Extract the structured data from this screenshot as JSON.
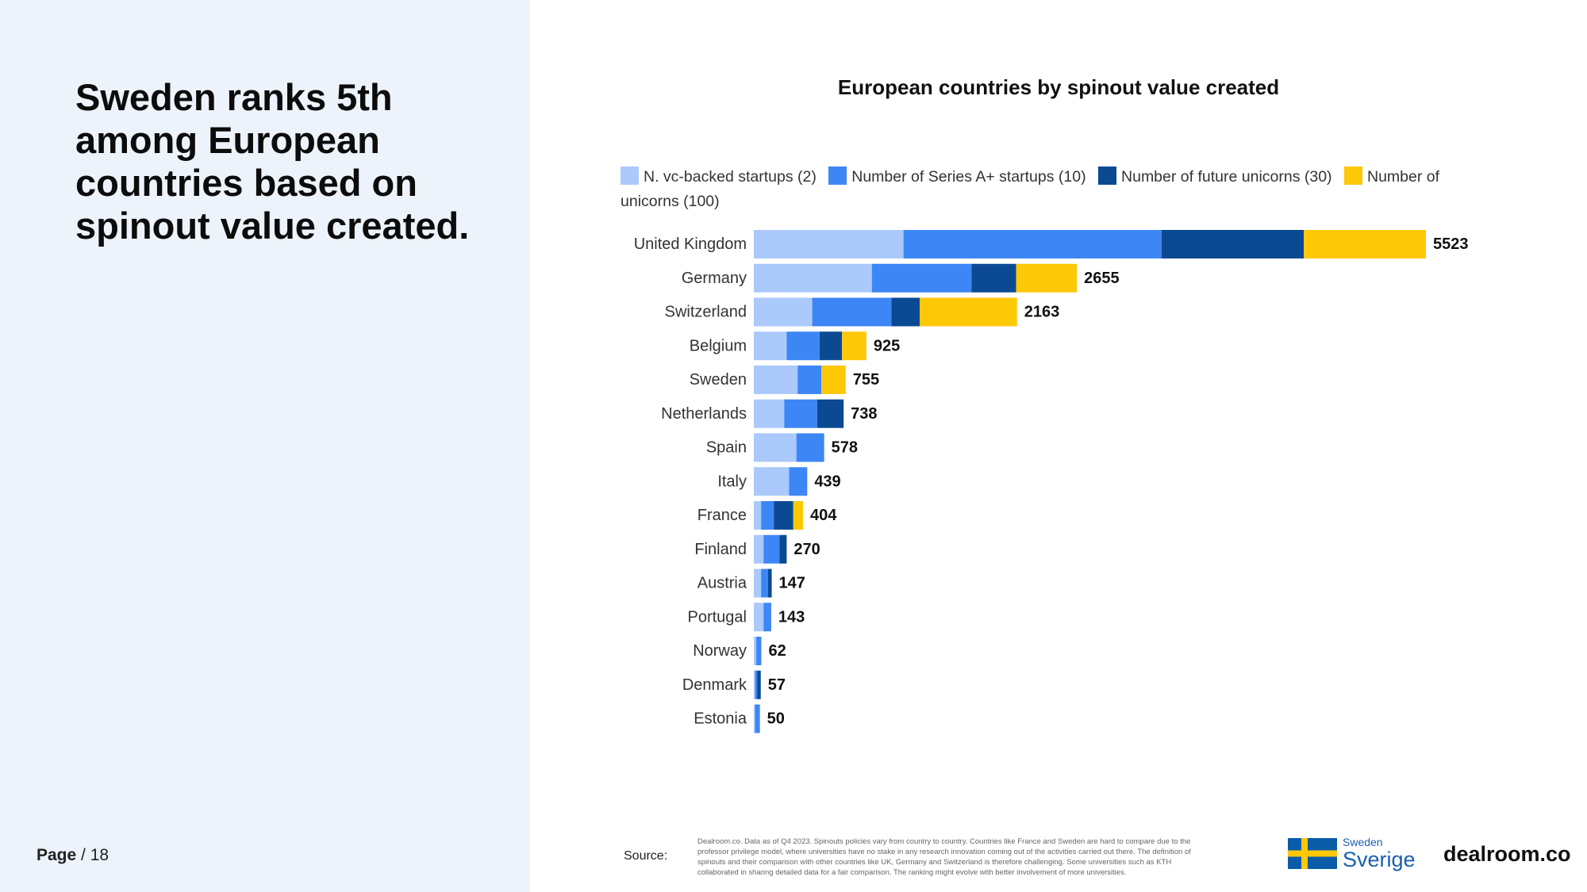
{
  "slide": {
    "headline": "Sweden ranks 5th among European countries based on spinout value created.",
    "page_label": "Page",
    "page_number": "/ 18"
  },
  "legend": {
    "items": [
      {
        "label": "N. vc-backed startups (2)",
        "color": "#abc9fb"
      },
      {
        "label": "Number of Series A+ startups (10)",
        "color": "#3d86f5"
      },
      {
        "label": "Number of future unicorns (30)",
        "color": "#0b4a93"
      },
      {
        "label": "Number of unicorns (100)",
        "color": "#fdc806"
      }
    ]
  },
  "chart_data": {
    "type": "bar",
    "orientation": "horizontal",
    "stacked": true,
    "title": "European countries by spinout value created",
    "categories": [
      "United Kingdom",
      "Germany",
      "Switzerland",
      "Belgium",
      "Sweden",
      "Netherlands",
      "Spain",
      "Italy",
      "France",
      "Finland",
      "Austria",
      "Portugal",
      "Norway",
      "Denmark",
      "Estonia"
    ],
    "series": [
      {
        "name": "N. vc-backed startups (2)",
        "color": "#abc9fb",
        "values": [
          1230,
          970,
          480,
          270,
          360,
          250,
          350,
          290,
          60,
          80,
          60,
          80,
          20,
          10,
          10
        ]
      },
      {
        "name": "Number of Series A+ startups (10)",
        "color": "#3d86f5",
        "values": [
          2120,
          820,
          650,
          270,
          195,
          270,
          228,
          149,
          104,
          130,
          57,
          63,
          42,
          17,
          40
        ]
      },
      {
        "name": "Number of future unicorns (30)",
        "color": "#0b4a93",
        "values": [
          1170,
          365,
          233,
          185,
          0,
          218,
          0,
          0,
          160,
          60,
          30,
          0,
          0,
          30,
          0
        ]
      },
      {
        "name": "Number of unicorns (100)",
        "color": "#fdc806",
        "values": [
          1003,
          500,
          800,
          200,
          200,
          0,
          0,
          0,
          80,
          0,
          0,
          0,
          0,
          0,
          0
        ]
      }
    ],
    "totals": [
      5523,
      2655,
      2163,
      925,
      755,
      738,
      578,
      439,
      404,
      270,
      147,
      143,
      62,
      57,
      50
    ],
    "xlim": [
      0,
      5523
    ],
    "xlabel": "",
    "ylabel": "",
    "grid": false
  },
  "source": {
    "label": "Source:",
    "text": "Dealroom.co. Data as of Q4 2023. Spinouts policies vary from country to country. Countries like France and Sweden are hard to compare due to the professor privilege model, where universities have no stake in any research innovation coming out of the activities carried out there. The definition of spinouts and their comparison with other countries like UK, Germany and Switzerland is therefore challenging. Some universities such as KTH collaborated in sharing detailed data for a fair comparison. The ranking might evolve with better involvement of more universities."
  },
  "logos": {
    "sweden_small": "Sweden",
    "sweden_big": "Sverige",
    "dealroom": "dealroom.co"
  }
}
